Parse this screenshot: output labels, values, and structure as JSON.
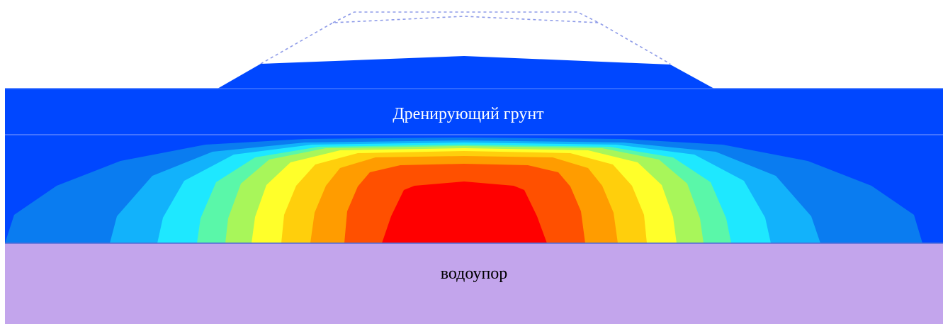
{
  "labels": {
    "draining_soil": "Дренирующий грунт",
    "aquiclude": "водоупор"
  },
  "colors": {
    "background": "#ffffff",
    "draining_layer": "#0047ff",
    "aquiclude": "#c3a5ec",
    "interface_line": "#5a84ff",
    "outline_dashed": "#8e9be8",
    "label_light": "#ffffff",
    "label_dark": "#000000",
    "contour_bands": [
      "#0a7cf0",
      "#12b2fb",
      "#1ee8ff",
      "#5af7a9",
      "#a8f65a",
      "#ffff2a",
      "#ffcf0c",
      "#ff9c00",
      "#ff5000",
      "#ff0000"
    ]
  }
}
